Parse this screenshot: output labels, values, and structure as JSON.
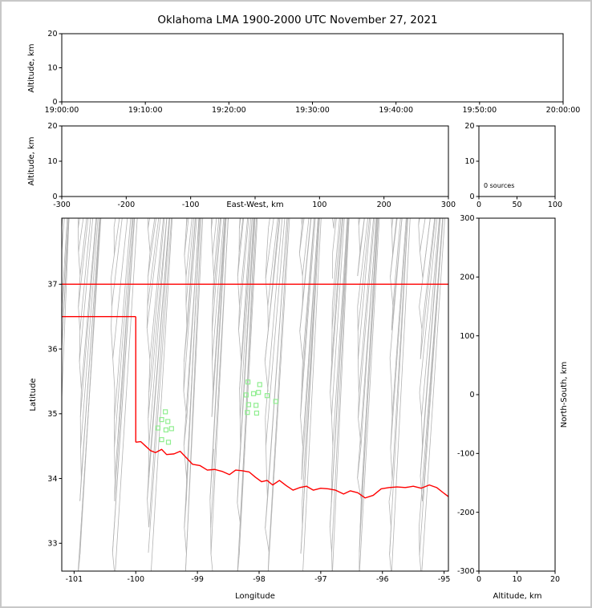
{
  "title": "Oklahoma LMA 1900-2000 UTC November 27, 2021",
  "colors": {
    "background": "#ffffff",
    "frame_border": "#c8c8c8",
    "axis": "#000000",
    "county_line": "#b3b3b3",
    "state_border": "#ff0000",
    "source_point": "#90ee90"
  },
  "chart_data": [
    {
      "id": "time_height",
      "type": "scatter",
      "xlabel": "",
      "ylabel": "Altitude, km",
      "x_ticks": [
        "19:00:00",
        "19:10:00",
        "19:20:00",
        "19:30:00",
        "19:40:00",
        "19:50:00",
        "20:00:00"
      ],
      "ylim": [
        0,
        20
      ],
      "y_ticks": [
        0,
        10,
        20
      ],
      "points": []
    },
    {
      "id": "ew_height",
      "type": "scatter",
      "xlabel": "East-West, km",
      "ylabel": "Altitude, km",
      "xlim": [
        -300,
        300
      ],
      "x_ticks": [
        -300,
        -200,
        -100,
        0,
        100,
        200,
        300
      ],
      "ylim": [
        0,
        20
      ],
      "y_ticks": [
        0,
        10,
        20
      ],
      "points": []
    },
    {
      "id": "alt_histogram",
      "type": "line",
      "annotation": "0 sources",
      "xlim": [
        0,
        100
      ],
      "x_ticks": [
        0,
        50,
        100
      ],
      "ylim": [
        0,
        20
      ],
      "y_ticks": [
        0,
        10,
        20
      ],
      "points": []
    },
    {
      "id": "plan_view",
      "type": "scatter",
      "xlabel": "Longitude",
      "ylabel": "Latitude",
      "xlim": [
        -101.2,
        -94.93
      ],
      "x_ticks": [
        -101,
        -100,
        -99,
        -98,
        -97,
        -96,
        -95
      ],
      "ylim": [
        32.57,
        38.02
      ],
      "y_ticks": [
        33,
        34,
        35,
        36,
        37
      ],
      "marker": "open-square",
      "points": [
        [
          -98.18,
          35.49
        ],
        [
          -97.99,
          35.45
        ],
        [
          -98.21,
          35.29
        ],
        [
          -98.09,
          35.31
        ],
        [
          -98.01,
          35.33
        ],
        [
          -97.87,
          35.28
        ],
        [
          -98.17,
          35.14
        ],
        [
          -98.05,
          35.13
        ],
        [
          -98.19,
          35.02
        ],
        [
          -98.04,
          35.01
        ],
        [
          -97.73,
          35.19
        ],
        [
          -99.52,
          35.03
        ],
        [
          -99.58,
          34.91
        ],
        [
          -99.48,
          34.88
        ],
        [
          -99.64,
          34.78
        ],
        [
          -99.51,
          34.75
        ],
        [
          -99.42,
          34.77
        ],
        [
          -99.58,
          34.6
        ],
        [
          -99.47,
          34.56
        ]
      ]
    },
    {
      "id": "ns_height",
      "type": "scatter",
      "xlabel": "Altitude, km",
      "ylabel": "North-South, km",
      "xlim": [
        0,
        20
      ],
      "x_ticks": [
        0,
        10,
        20
      ],
      "ylim": [
        -300,
        300
      ],
      "y_ticks": [
        -300,
        -200,
        -100,
        0,
        100,
        200,
        300
      ],
      "points": []
    }
  ],
  "map": {
    "counties": {
      "color": "#b3b3b3",
      "style": "approximate-lattice"
    },
    "state_border": {
      "color": "#ff0000",
      "polylines": {
        "kansas_oklahoma_north_border": [
          [
            -101.2,
            37.0
          ],
          [
            -94.93,
            37.0
          ]
        ],
        "panhandle_south_border": [
          [
            -101.2,
            36.5
          ],
          [
            -100.0,
            36.5
          ]
        ],
        "oklahoma_west_border": [
          [
            -100.0,
            36.5
          ],
          [
            -100.0,
            34.56
          ]
        ],
        "red_river_south_border": [
          [
            -100.0,
            34.56
          ],
          [
            -99.92,
            34.57
          ],
          [
            -99.84,
            34.5
          ],
          [
            -99.76,
            34.43
          ],
          [
            -99.68,
            34.4
          ],
          [
            -99.58,
            34.45
          ],
          [
            -99.5,
            34.37
          ],
          [
            -99.38,
            34.38
          ],
          [
            -99.28,
            34.42
          ],
          [
            -99.19,
            34.33
          ],
          [
            -99.08,
            34.22
          ],
          [
            -98.96,
            34.2
          ],
          [
            -98.84,
            34.13
          ],
          [
            -98.72,
            34.14
          ],
          [
            -98.6,
            34.11
          ],
          [
            -98.48,
            34.06
          ],
          [
            -98.38,
            34.13
          ],
          [
            -98.28,
            34.12
          ],
          [
            -98.16,
            34.1
          ],
          [
            -98.06,
            34.02
          ],
          [
            -97.96,
            33.95
          ],
          [
            -97.87,
            33.97
          ],
          [
            -97.78,
            33.9
          ],
          [
            -97.67,
            33.97
          ],
          [
            -97.56,
            33.89
          ],
          [
            -97.45,
            33.82
          ],
          [
            -97.34,
            33.86
          ],
          [
            -97.23,
            33.88
          ],
          [
            -97.12,
            33.82
          ],
          [
            -97.0,
            33.85
          ],
          [
            -96.88,
            33.84
          ],
          [
            -96.76,
            33.82
          ],
          [
            -96.63,
            33.76
          ],
          [
            -96.52,
            33.81
          ],
          [
            -96.4,
            33.78
          ],
          [
            -96.28,
            33.7
          ],
          [
            -96.15,
            33.74
          ],
          [
            -96.02,
            33.84
          ],
          [
            -95.89,
            33.86
          ],
          [
            -95.76,
            33.87
          ],
          [
            -95.63,
            33.86
          ],
          [
            -95.5,
            33.88
          ],
          [
            -95.37,
            33.85
          ],
          [
            -95.24,
            33.9
          ],
          [
            -95.12,
            33.86
          ],
          [
            -95.0,
            33.77
          ],
          [
            -94.93,
            33.72
          ]
        ]
      }
    }
  }
}
